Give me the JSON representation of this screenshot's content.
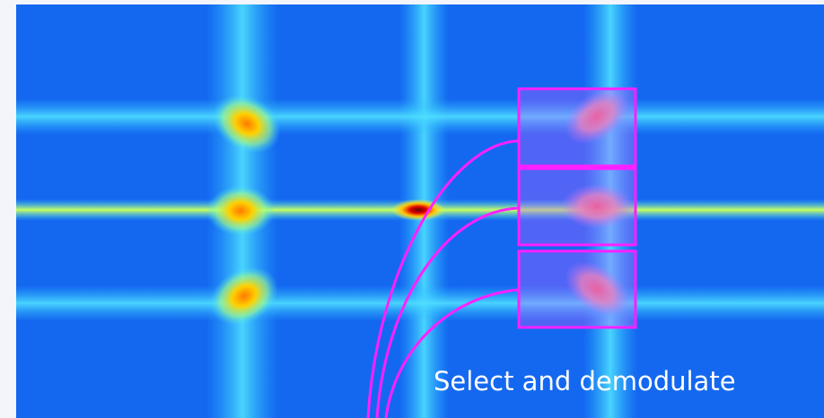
{
  "annotation": "Select and demodulate"
}
